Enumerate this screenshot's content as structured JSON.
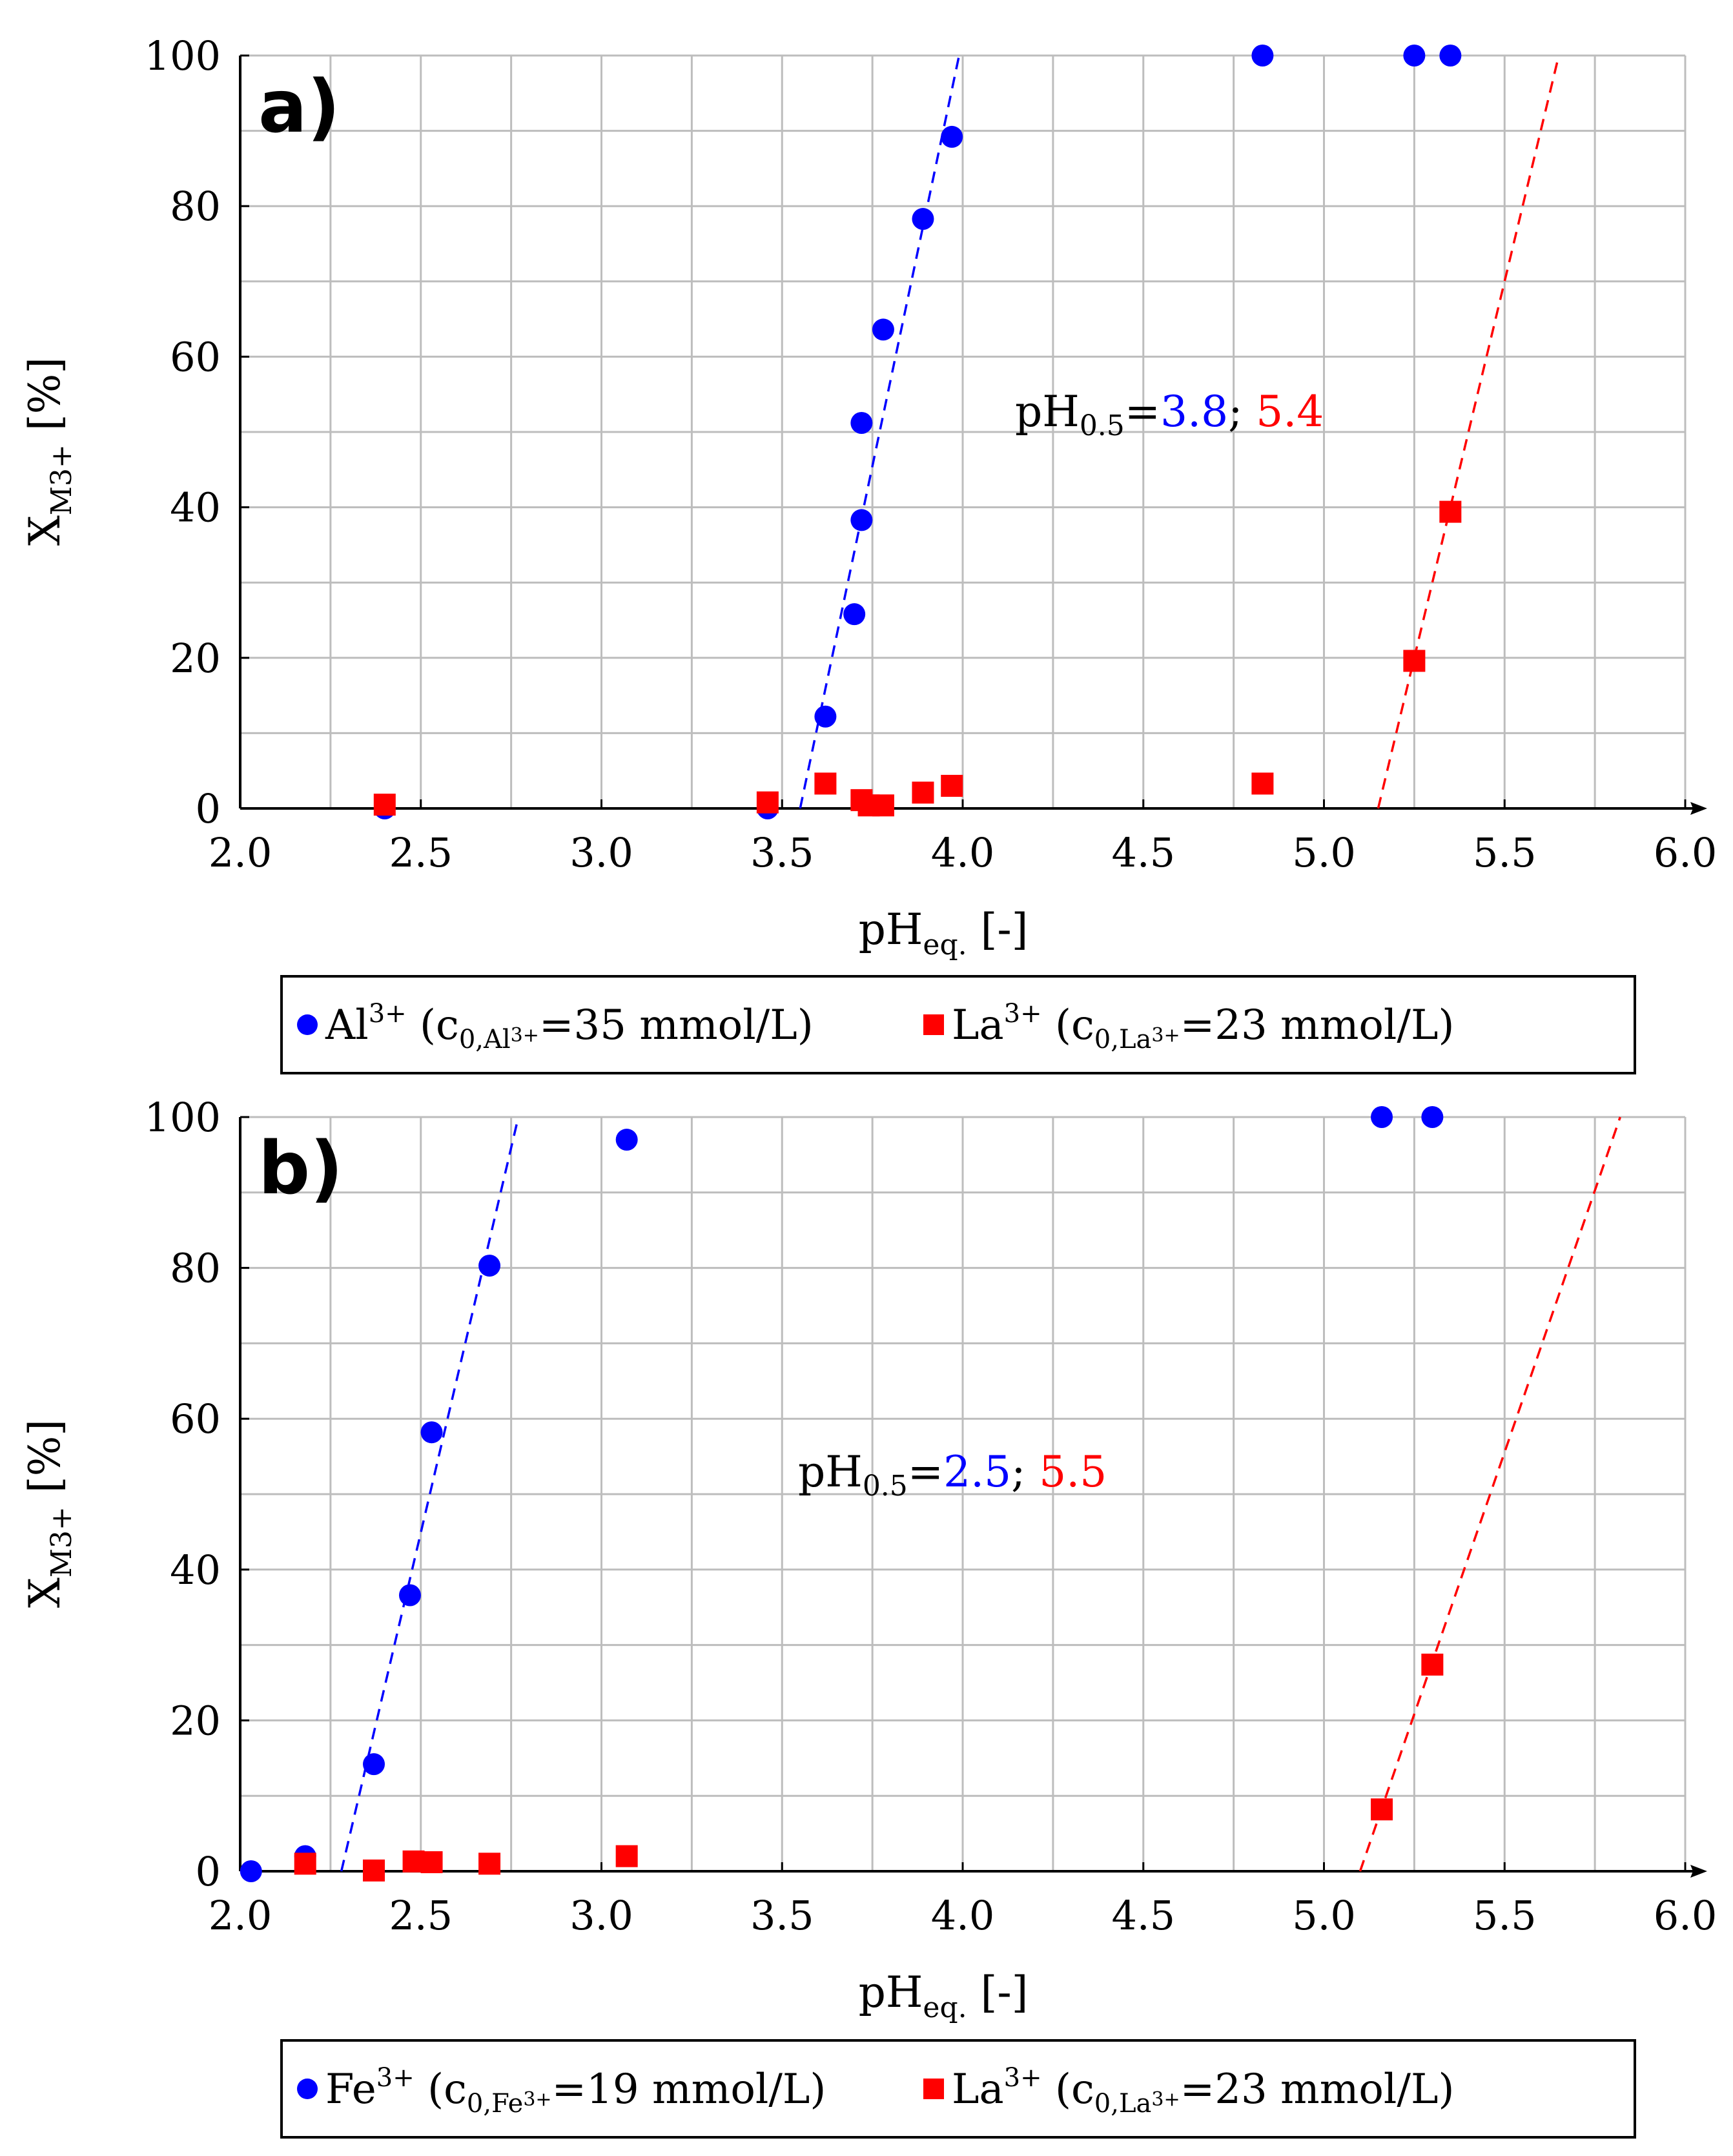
{
  "chart_data": [
    {
      "type": "scatter",
      "panel_label": "a)",
      "xlabel": "pH",
      "xlabel_sub": "eq.",
      "xlabel_unit": "[-]",
      "ylabel": "X",
      "ylabel_sub": "M3+",
      "ylabel_unit": "[%]",
      "xlim": [
        2.0,
        6.0
      ],
      "ylim": [
        0,
        100
      ],
      "xticks": [
        "2.0",
        "2.5",
        "3.0",
        "3.5",
        "4.0",
        "4.5",
        "5.0",
        "5.5",
        "6.0"
      ],
      "yticks": [
        "0",
        "20",
        "40",
        "60",
        "80",
        "100"
      ],
      "grid": true,
      "annotation": {
        "prefix": "pH",
        "prefix_sub": "0.5",
        "eq": "=",
        "value1": "3.8",
        "sep": ";",
        "value2": "5.4"
      },
      "series": [
        {
          "name": "Al3+",
          "color": "#0000ff",
          "marker": "circle",
          "legend": {
            "ion": "Al",
            "ion_sup": "3+",
            "conc_open": "(c",
            "conc_sub": "0,Al",
            "conc_subsup": "3+",
            "conc_value": "=35 mmol/L)"
          },
          "points": [
            [
              2.4,
              0
            ],
            [
              3.46,
              0
            ],
            [
              3.62,
              12.2
            ],
            [
              3.7,
              25.8
            ],
            [
              3.72,
              38.3
            ],
            [
              3.72,
              51.2
            ],
            [
              3.78,
              63.6
            ],
            [
              3.89,
              78.3
            ],
            [
              3.97,
              89.2
            ],
            [
              4.83,
              100
            ],
            [
              5.25,
              100
            ],
            [
              5.35,
              100
            ]
          ],
          "fit_line": [
            [
              3.55,
              0
            ],
            [
              3.99,
              100
            ]
          ]
        },
        {
          "name": "La3+",
          "color": "#ff0000",
          "marker": "square",
          "legend": {
            "ion": "La",
            "ion_sup": "3+",
            "conc_open": "(c",
            "conc_sub": "0,La",
            "conc_subsup": "3+",
            "conc_value": "=23 mmol/L)"
          },
          "points": [
            [
              2.4,
              0.5
            ],
            [
              3.46,
              0.8
            ],
            [
              3.62,
              3.3
            ],
            [
              3.72,
              1.1
            ],
            [
              3.74,
              0.4
            ],
            [
              3.78,
              0.4
            ],
            [
              3.89,
              2.1
            ],
            [
              3.97,
              3.0
            ],
            [
              4.83,
              3.3
            ],
            [
              5.25,
              19.6
            ],
            [
              5.35,
              39.4
            ]
          ],
          "fit_line": [
            [
              5.15,
              0
            ],
            [
              5.65,
              100
            ]
          ]
        }
      ]
    },
    {
      "type": "scatter",
      "panel_label": "b)",
      "xlabel": "pH",
      "xlabel_sub": "eq.",
      "xlabel_unit": "[-]",
      "ylabel": "X",
      "ylabel_sub": "M3+",
      "ylabel_unit": "[%]",
      "xlim": [
        2.0,
        6.0
      ],
      "ylim": [
        0,
        100
      ],
      "xticks": [
        "2.0",
        "2.5",
        "3.0",
        "3.5",
        "4.0",
        "4.5",
        "5.0",
        "5.5",
        "6.0"
      ],
      "yticks": [
        "0",
        "20",
        "40",
        "60",
        "80",
        "100"
      ],
      "grid": true,
      "annotation": {
        "prefix": "pH",
        "prefix_sub": "0.5",
        "eq": "=",
        "value1": "2.5",
        "sep": ";",
        "value2": "5.5"
      },
      "series": [
        {
          "name": "Fe3+",
          "color": "#0000ff",
          "marker": "circle",
          "legend": {
            "ion": "Fe",
            "ion_sup": "3+",
            "conc_open": "(c",
            "conc_sub": "0,Fe",
            "conc_subsup": "3+",
            "conc_value": "=19 mmol/L)"
          },
          "points": [
            [
              2.03,
              0
            ],
            [
              2.18,
              2.0
            ],
            [
              2.37,
              14.2
            ],
            [
              2.47,
              36.6
            ],
            [
              2.53,
              58.2
            ],
            [
              2.69,
              80.3
            ],
            [
              3.07,
              97.0
            ],
            [
              5.16,
              100
            ],
            [
              5.3,
              100
            ]
          ],
          "fit_line": [
            [
              2.28,
              0
            ],
            [
              2.77,
              100
            ]
          ]
        },
        {
          "name": "La3+",
          "color": "#ff0000",
          "marker": "square",
          "legend": {
            "ion": "La",
            "ion_sup": "3+",
            "conc_open": "(c",
            "conc_sub": "0,La",
            "conc_subsup": "3+",
            "conc_value": "=23 mmol/L)"
          },
          "points": [
            [
              2.18,
              1.0
            ],
            [
              2.37,
              0.1
            ],
            [
              2.48,
              1.3
            ],
            [
              2.53,
              1.2
            ],
            [
              2.69,
              1.0
            ],
            [
              3.07,
              2.0
            ],
            [
              5.16,
              8.2
            ],
            [
              5.3,
              27.4
            ]
          ],
          "fit_line": [
            [
              5.1,
              0
            ],
            [
              5.82,
              100
            ]
          ]
        }
      ]
    }
  ]
}
